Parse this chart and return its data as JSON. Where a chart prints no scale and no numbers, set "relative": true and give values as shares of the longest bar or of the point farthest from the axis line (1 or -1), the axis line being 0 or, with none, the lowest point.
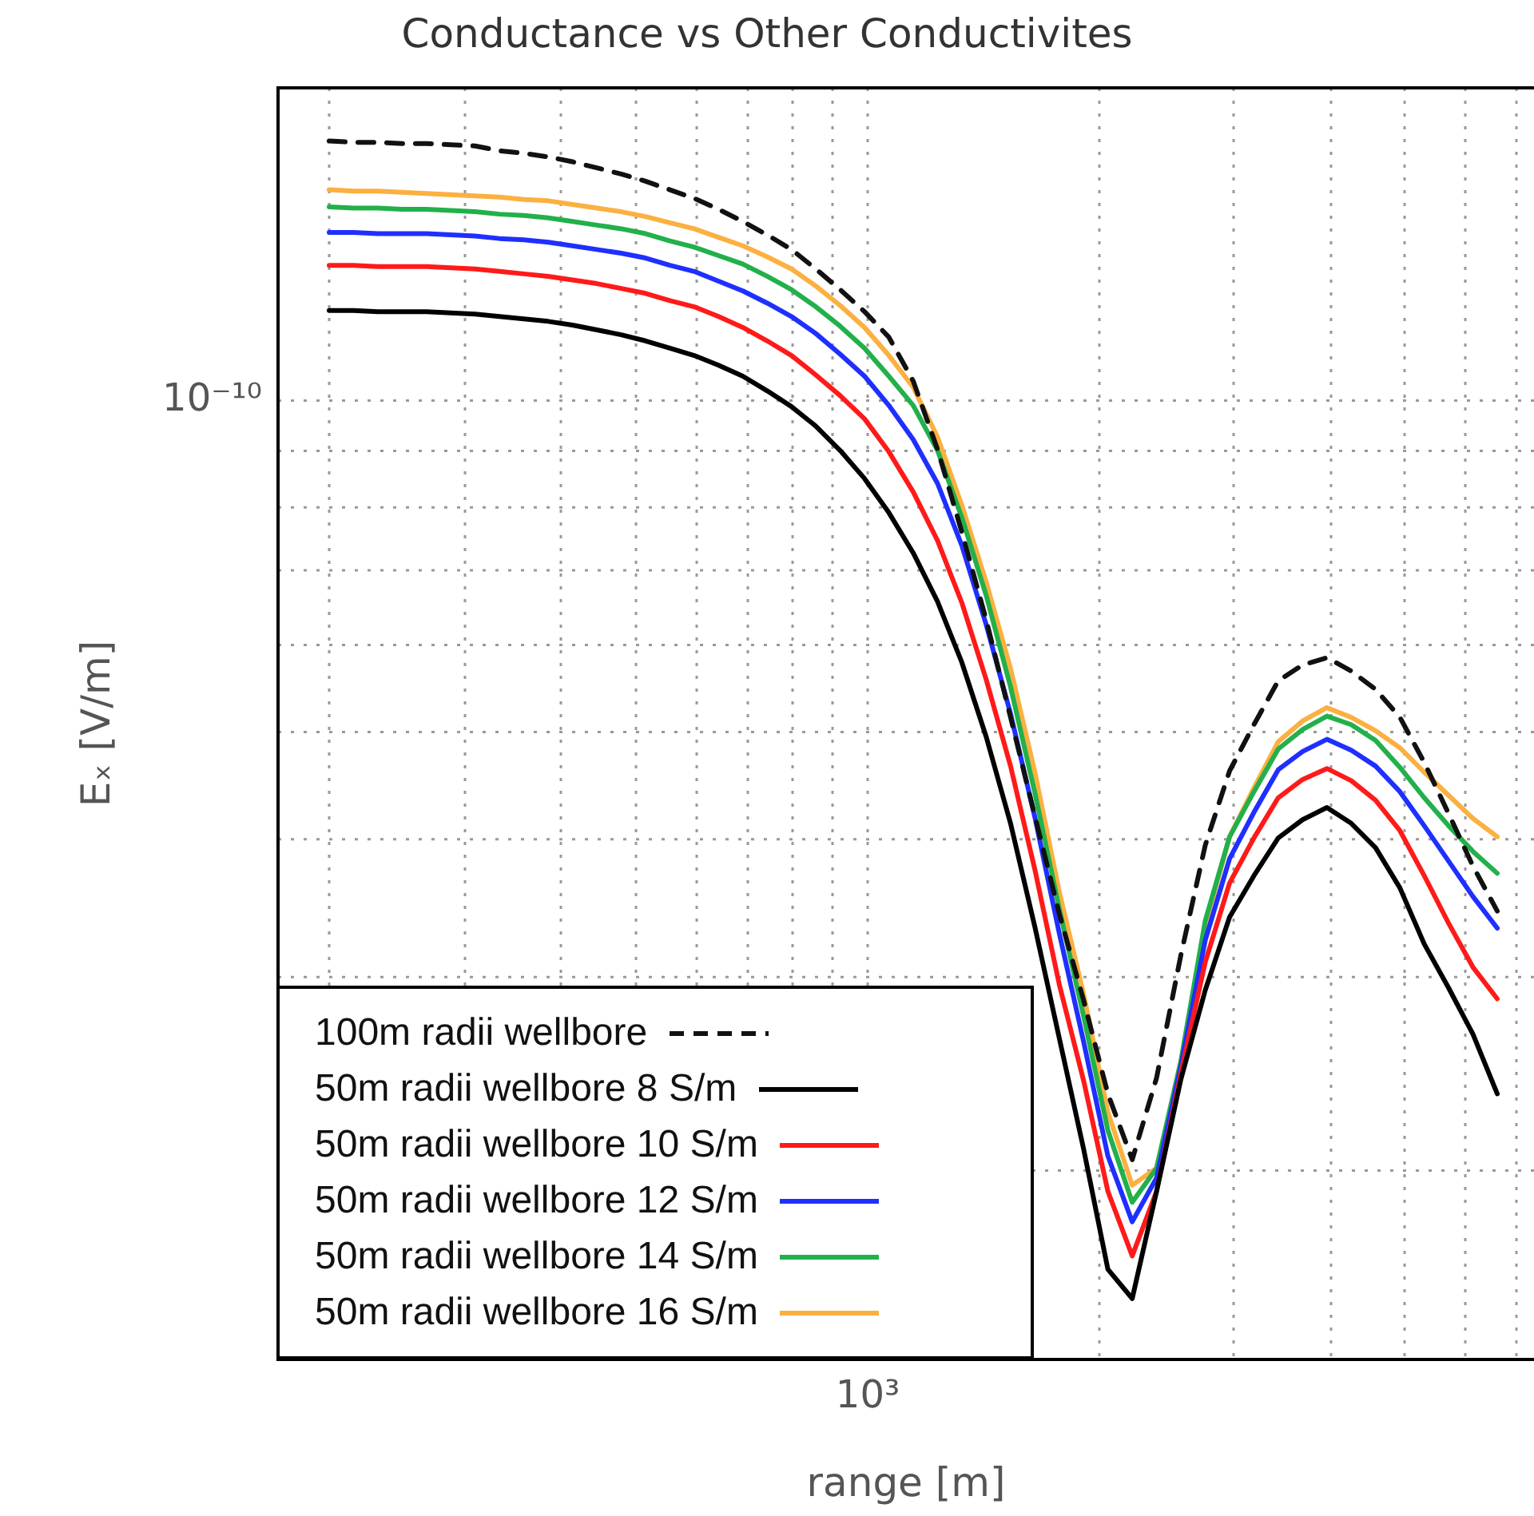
{
  "chart_data": {
    "type": "line",
    "title": "Conductance vs Other Conductivites",
    "xlabel": "range [m]",
    "ylabel": "Eₓ [V/m]",
    "relative": true,
    "grid": true,
    "legend": "bottom left",
    "marker": "none",
    "annotations": [
      "10³",
      "10⁻¹⁰"
    ],
    "categories": [
      null,
      null,
      null,
      null,
      null,
      null,
      null,
      null,
      null,
      null,
      null,
      null,
      null,
      null,
      null,
      null,
      null,
      null,
      null,
      null,
      null,
      null,
      null,
      null,
      null,
      null,
      null,
      null,
      null,
      null,
      null,
      null,
      null,
      null,
      null,
      null,
      null,
      null,
      null,
      null,
      null,
      null,
      null,
      null,
      null,
      null,
      null,
      null,
      null
    ],
    "series": [
      {
        "name": "100m radii wellbore",
        "color": "#111111",
        "line_style": "dashed",
        "values": [
          1.0,
          0.999,
          0.999,
          0.998,
          0.998,
          0.997,
          0.996,
          0.992,
          0.99,
          0.987,
          0.983,
          0.978,
          0.973,
          0.967,
          0.96,
          0.953,
          0.944,
          0.934,
          0.923,
          0.911,
          0.895,
          0.878,
          0.86,
          0.839,
          0.803,
          0.747,
          0.679,
          0.607,
          0.527,
          0.446,
          0.366,
          0.295,
          0.218,
          0.164,
          0.231,
          0.332,
          0.422,
          0.483,
          0.521,
          0.557,
          0.57,
          0.576,
          0.565,
          0.55,
          0.527,
          0.49,
          0.448,
          0.405,
          0.368
        ]
      },
      {
        "name": "50m radii wellbore 8 S/m",
        "color": "#000000",
        "values": [
          0.861,
          0.861,
          0.86,
          0.86,
          0.86,
          0.859,
          0.858,
          0.856,
          0.854,
          0.852,
          0.849,
          0.845,
          0.841,
          0.836,
          0.83,
          0.824,
          0.816,
          0.807,
          0.795,
          0.782,
          0.766,
          0.746,
          0.723,
          0.695,
          0.662,
          0.622,
          0.572,
          0.511,
          0.44,
          0.355,
          0.264,
          0.173,
          0.074,
          0.05,
          0.138,
          0.23,
          0.303,
          0.363,
          0.397,
          0.428,
          0.443,
          0.453,
          0.44,
          0.42,
          0.387,
          0.341,
          0.305,
          0.267,
          0.218
        ]
      },
      {
        "name": "50m radii wellbore 10 S/m",
        "color": "#ff1a1a",
        "values": [
          0.898,
          0.898,
          0.897,
          0.897,
          0.897,
          0.896,
          0.895,
          0.893,
          0.891,
          0.889,
          0.886,
          0.883,
          0.879,
          0.875,
          0.869,
          0.864,
          0.856,
          0.847,
          0.836,
          0.824,
          0.808,
          0.791,
          0.772,
          0.745,
          0.712,
          0.672,
          0.621,
          0.558,
          0.487,
          0.402,
          0.308,
          0.229,
          0.138,
          0.085,
          0.138,
          0.235,
          0.326,
          0.391,
          0.428,
          0.461,
          0.476,
          0.485,
          0.475,
          0.459,
          0.434,
          0.397,
          0.358,
          0.322,
          0.296
        ]
      },
      {
        "name": "50m radii wellbore 12 S/m",
        "color": "#1f2fff",
        "values": [
          0.925,
          0.925,
          0.924,
          0.924,
          0.924,
          0.923,
          0.922,
          0.92,
          0.919,
          0.917,
          0.914,
          0.911,
          0.908,
          0.904,
          0.898,
          0.893,
          0.885,
          0.877,
          0.867,
          0.856,
          0.842,
          0.825,
          0.807,
          0.783,
          0.755,
          0.719,
          0.668,
          0.603,
          0.53,
          0.445,
          0.35,
          0.261,
          0.167,
          0.113,
          0.149,
          0.241,
          0.344,
          0.411,
          0.449,
          0.484,
          0.499,
          0.509,
          0.5,
          0.487,
          0.466,
          0.438,
          0.409,
          0.38,
          0.354
        ]
      },
      {
        "name": "50m radii wellbore 14 S/m",
        "color": "#22b04a",
        "values": [
          0.946,
          0.945,
          0.945,
          0.944,
          0.944,
          0.943,
          0.942,
          0.94,
          0.939,
          0.937,
          0.934,
          0.931,
          0.928,
          0.924,
          0.918,
          0.913,
          0.906,
          0.899,
          0.889,
          0.878,
          0.864,
          0.848,
          0.83,
          0.807,
          0.783,
          0.746,
          0.691,
          0.627,
          0.552,
          0.465,
          0.37,
          0.282,
          0.188,
          0.129,
          0.157,
          0.245,
          0.36,
          0.429,
          0.466,
          0.501,
          0.517,
          0.528,
          0.521,
          0.508,
          0.486,
          0.461,
          0.438,
          0.417,
          0.399
        ]
      },
      {
        "name": "50m radii wellbore 16 S/m",
        "color": "#fbb040",
        "values": [
          0.96,
          0.959,
          0.959,
          0.958,
          0.957,
          0.956,
          0.955,
          0.954,
          0.952,
          0.951,
          0.948,
          0.945,
          0.942,
          0.938,
          0.933,
          0.928,
          0.921,
          0.914,
          0.905,
          0.895,
          0.881,
          0.865,
          0.847,
          0.824,
          0.798,
          0.757,
          0.701,
          0.638,
          0.567,
          0.482,
          0.384,
          0.3,
          0.203,
          0.143,
          0.157,
          0.241,
          0.356,
          0.429,
          0.469,
          0.507,
          0.524,
          0.535,
          0.527,
          0.516,
          0.502,
          0.482,
          0.463,
          0.444,
          0.429
        ]
      }
    ]
  }
}
